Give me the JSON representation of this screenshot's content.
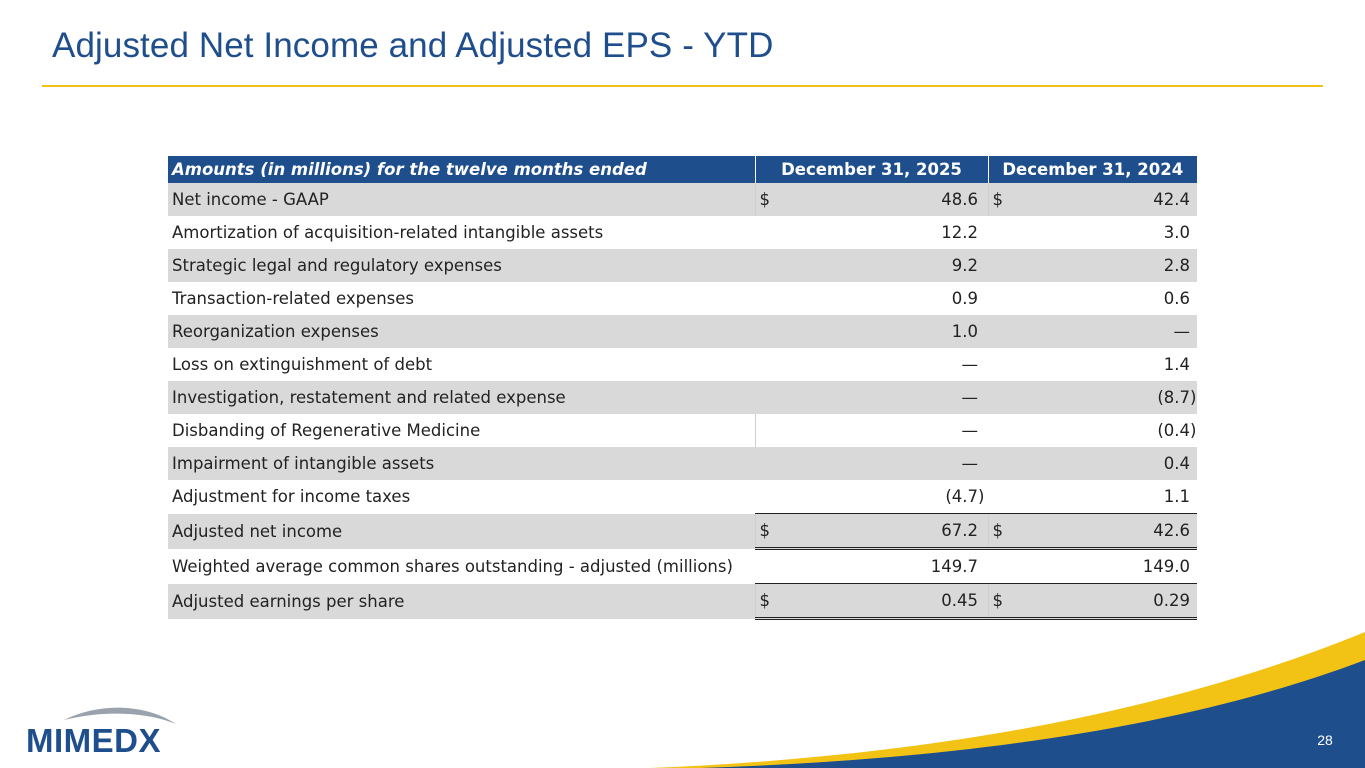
{
  "slide": {
    "title": "Adjusted Net Income and Adjusted EPS - YTD",
    "page_number": "28",
    "logo_text": "MIMEDX"
  },
  "colors": {
    "brand_blue": "#1f4e8c",
    "accent_yellow": "#f2c315",
    "row_shade": "#d9d9d9"
  },
  "table": {
    "header": {
      "label": "Amounts (in millions) for the twelve months ended",
      "col1": "December 31, 2025",
      "col2": "December 31, 2024"
    },
    "rows": [
      {
        "label": "Net income - GAAP",
        "d1": "$",
        "v1": "48.6",
        "p1": "",
        "d2": "$",
        "v2": "42.4",
        "p2": ""
      },
      {
        "label": "Amortization of acquisition-related intangible assets",
        "d1": "",
        "v1": "12.2",
        "p1": "",
        "d2": "",
        "v2": "3.0",
        "p2": ""
      },
      {
        "label": "Strategic legal and regulatory expenses",
        "d1": "",
        "v1": "9.2",
        "p1": "",
        "d2": "",
        "v2": "2.8",
        "p2": ""
      },
      {
        "label": "Transaction-related expenses",
        "d1": "",
        "v1": "0.9",
        "p1": "",
        "d2": "",
        "v2": "0.6",
        "p2": ""
      },
      {
        "label": "Reorganization expenses",
        "d1": "",
        "v1": "1.0",
        "p1": "",
        "d2": "",
        "v2": "—",
        "p2": ""
      },
      {
        "label": "Loss on extinguishment of debt",
        "d1": "",
        "v1": "—",
        "p1": "",
        "d2": "",
        "v2": "1.4",
        "p2": ""
      },
      {
        "label": "Investigation, restatement and related expense",
        "d1": "",
        "v1": "—",
        "p1": "",
        "d2": "",
        "v2": "(8.7",
        "p2": ")"
      },
      {
        "label": "Disbanding of Regenerative Medicine",
        "d1": "",
        "v1": "—",
        "p1": "",
        "d2": "",
        "v2": "(0.4",
        "p2": ")"
      },
      {
        "label": "Impairment of intangible assets",
        "d1": "",
        "v1": "—",
        "p1": "",
        "d2": "",
        "v2": "0.4",
        "p2": ""
      },
      {
        "label": "Adjustment for income taxes",
        "d1": "",
        "v1": "(4.7",
        "p1": ")",
        "d2": "",
        "v2": "1.1",
        "p2": ""
      },
      {
        "label": "Adjusted net income",
        "d1": "$",
        "v1": "67.2",
        "p1": "",
        "d2": "$",
        "v2": "42.6",
        "p2": ""
      },
      {
        "label": "Weighted average common shares outstanding - adjusted (millions)",
        "d1": "",
        "v1": "149.7",
        "p1": "",
        "d2": "",
        "v2": "149.0",
        "p2": ""
      },
      {
        "label": "Adjusted earnings per share",
        "d1": "$",
        "v1": "0.45",
        "p1": "",
        "d2": "$",
        "v2": "0.29",
        "p2": ""
      }
    ]
  }
}
